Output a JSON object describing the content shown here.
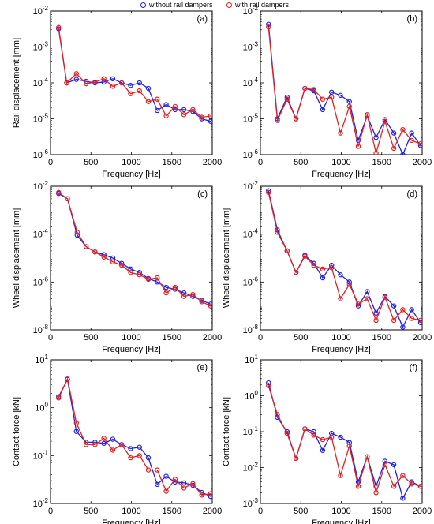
{
  "legend": {
    "items": [
      {
        "label": "without rail dampers",
        "color": "#1f1fe6"
      },
      {
        "label": "with rail dampers",
        "color": "#e61f1f"
      }
    ]
  },
  "chart_data": [
    {
      "type": "line",
      "panel": "(a)",
      "xlabel": "Frequency [Hz]",
      "ylabel": "Rail displacement [mm]",
      "xlim": [
        0,
        2000
      ],
      "ylim": [
        1e-06,
        0.01
      ],
      "yscale": "log",
      "xticks": [
        "0",
        "500",
        "1000",
        "1500",
        "2000"
      ],
      "yticks": [
        "10^-6",
        "10^-5",
        "10^-4",
        "10^-3",
        "10^-2"
      ],
      "x": [
        100,
        200,
        320,
        440,
        550,
        660,
        770,
        880,
        990,
        1100,
        1210,
        1320,
        1430,
        1540,
        1650,
        1760,
        1870,
        1980
      ],
      "series": [
        {
          "name": "without rail dampers",
          "color": "#1f1fe6",
          "values": [
            0.0032,
            0.0001,
            0.000125,
            0.00011,
            0.0001,
            0.000105,
            0.00013,
            0.0001,
            8.5e-05,
            0.0001,
            7e-05,
            1.7e-05,
            2.5e-05,
            1.8e-05,
            1.8e-05,
            1.6e-05,
            1e-05,
            8.5e-06
          ]
        },
        {
          "name": "with rail dampers",
          "color": "#e61f1f",
          "values": [
            0.0035,
            0.0001,
            0.00018,
            9.5e-05,
            0.000105,
            0.00013,
            8e-05,
            0.0001,
            5e-05,
            6e-05,
            3e-05,
            3.5e-05,
            1.2e-05,
            2.2e-05,
            1.3e-05,
            1.8e-05,
            1.1e-05,
            1.2e-05
          ]
        }
      ]
    },
    {
      "type": "line",
      "panel": "(b)",
      "xlabel": "Frequency [Hz]",
      "ylabel": "",
      "xlim": [
        0,
        2000
      ],
      "ylim": [
        1e-06,
        0.01
      ],
      "yscale": "log",
      "xticks": [
        "0",
        "500",
        "1000",
        "1500",
        "2000"
      ],
      "yticks": [
        "10^-6",
        "10^-5",
        "10^-4",
        "10^-3",
        "10^-2"
      ],
      "x": [
        100,
        210,
        330,
        440,
        550,
        660,
        770,
        880,
        990,
        1100,
        1210,
        1320,
        1430,
        1540,
        1650,
        1760,
        1870,
        1980
      ],
      "series": [
        {
          "name": "without rail dampers",
          "color": "#1f1fe6",
          "values": [
            0.0043,
            1e-05,
            4e-05,
            1e-05,
            7e-05,
            6e-05,
            1.8e-05,
            5.5e-05,
            4.5e-05,
            3e-05,
            2.5e-06,
            1.2e-05,
            3e-06,
            9.5e-06,
            4e-06,
            1e-06,
            4e-06,
            1.8e-06
          ]
        },
        {
          "name": "with rail dampers",
          "color": "#e61f1f",
          "values": [
            0.0036,
            9e-06,
            3.5e-05,
            1e-05,
            7e-05,
            6.5e-05,
            3.5e-05,
            4e-05,
            4e-06,
            2.2e-05,
            1.7e-06,
            1.3e-05,
            1.1e-06,
            8.5e-06,
            1.5e-06,
            5e-06,
            2.5e-06,
            2e-06
          ]
        }
      ]
    },
    {
      "type": "line",
      "panel": "(c)",
      "xlabel": "Frequency [Hz]",
      "ylabel": "Wheel displacement [mm]",
      "xlim": [
        0,
        2000
      ],
      "ylim": [
        1e-08,
        0.01
      ],
      "yscale": "log",
      "xticks": [
        "0",
        "500",
        "1000",
        "1500",
        "2000"
      ],
      "yticks": [
        "10^-8",
        "10^-6",
        "10^-4",
        "10^-2"
      ],
      "x": [
        100,
        210,
        330,
        440,
        550,
        660,
        770,
        880,
        990,
        1100,
        1210,
        1320,
        1430,
        1540,
        1650,
        1760,
        1870,
        1980
      ],
      "series": [
        {
          "name": "without rail dampers",
          "color": "#1f1fe6",
          "values": [
            0.005,
            0.003,
            9e-05,
            3e-05,
            1.8e-05,
            1.4e-05,
            1e-05,
            6e-06,
            3.5e-06,
            2.5e-06,
            1.4e-06,
            1e-06,
            6e-07,
            5e-07,
            3.5e-07,
            2.5e-07,
            1.7e-07,
            1.2e-07
          ]
        },
        {
          "name": "with rail dampers",
          "color": "#e61f1f",
          "values": [
            0.0055,
            0.003,
            0.00012,
            3e-05,
            1.8e-05,
            1.1e-05,
            7e-06,
            5e-06,
            2.5e-06,
            2e-06,
            1.3e-06,
            1.5e-06,
            3.5e-07,
            6e-07,
            2.5e-07,
            3e-07,
            1.5e-07,
            1e-07
          ]
        }
      ]
    },
    {
      "type": "line",
      "panel": "(d)",
      "xlabel": "Frequency [Hz]",
      "ylabel": "Wheel displacement [mm]",
      "xlim": [
        0,
        2000
      ],
      "ylim": [
        1e-08,
        0.01
      ],
      "yscale": "log",
      "xticks": [
        "0",
        "500",
        "1000",
        "1500",
        "2000"
      ],
      "yticks": [
        "10^-8",
        "10^-6",
        "10^-4",
        "10^-2"
      ],
      "x": [
        100,
        210,
        330,
        440,
        550,
        660,
        770,
        880,
        990,
        1100,
        1210,
        1320,
        1430,
        1540,
        1650,
        1760,
        1870,
        1980
      ],
      "series": [
        {
          "name": "without rail dampers",
          "color": "#1f1fe6",
          "values": [
            0.0065,
            0.00015,
            2e-05,
            2.5e-06,
            1.3e-05,
            6e-06,
            1.5e-06,
            5e-06,
            2e-06,
            1e-06,
            1e-07,
            4e-07,
            5e-08,
            2.5e-07,
            1e-07,
            1.3e-08,
            7e-08,
            2e-08
          ]
        },
        {
          "name": "with rail dampers",
          "color": "#e61f1f",
          "values": [
            0.0055,
            0.00012,
            2e-05,
            2.5e-06,
            1.2e-05,
            5e-06,
            3.5e-06,
            4e-06,
            2e-07,
            8e-07,
            1.2e-07,
            2e-07,
            2.5e-08,
            2.3e-07,
            2.5e-08,
            7e-08,
            3e-08,
            2.5e-08
          ]
        }
      ]
    },
    {
      "type": "line",
      "panel": "(e)",
      "xlabel": "Frequency [Hz]",
      "ylabel": "Contact force [kN]",
      "xlim": [
        0,
        2000
      ],
      "ylim": [
        0.01,
        10.0
      ],
      "yscale": "log",
      "xticks": [
        "0",
        "500",
        "1000",
        "1500",
        "2000"
      ],
      "yticks": [
        "10^-2",
        "10^-1",
        "10^0",
        "10^1"
      ],
      "x": [
        100,
        210,
        320,
        440,
        550,
        660,
        770,
        880,
        990,
        1100,
        1210,
        1320,
        1430,
        1540,
        1650,
        1760,
        1870,
        1980
      ],
      "series": [
        {
          "name": "without rail dampers",
          "color": "#1f1fe6",
          "values": [
            1.7,
            3.9,
            0.32,
            0.19,
            0.19,
            0.18,
            0.22,
            0.17,
            0.14,
            0.15,
            0.09,
            0.025,
            0.037,
            0.028,
            0.027,
            0.024,
            0.017,
            0.014
          ]
        },
        {
          "name": "with rail dampers",
          "color": "#e61f1f",
          "values": [
            1.6,
            4.0,
            0.48,
            0.17,
            0.17,
            0.23,
            0.13,
            0.17,
            0.09,
            0.1,
            0.05,
            0.05,
            0.018,
            0.032,
            0.021,
            0.026,
            0.015,
            0.016
          ]
        }
      ]
    },
    {
      "type": "line",
      "panel": "(f)",
      "xlabel": "Frequency [Hz]",
      "ylabel": "Contact force [kN]",
      "xlim": [
        0,
        2000
      ],
      "ylim": [
        0.001,
        10.0
      ],
      "yscale": "log",
      "xticks": [
        "0",
        "500",
        "1000",
        "1500",
        "2000"
      ],
      "yticks": [
        "10^-3",
        "10^-2",
        "10^-1",
        "10^0",
        "10^1"
      ],
      "x": [
        100,
        210,
        330,
        440,
        550,
        660,
        770,
        880,
        990,
        1100,
        1210,
        1320,
        1430,
        1540,
        1650,
        1760,
        1870,
        1980
      ],
      "series": [
        {
          "name": "without rail dampers",
          "color": "#1f1fe6",
          "values": [
            2.3,
            0.25,
            0.1,
            0.018,
            0.12,
            0.1,
            0.03,
            0.09,
            0.07,
            0.05,
            0.004,
            0.02,
            0.003,
            0.015,
            0.012,
            0.0014,
            0.004,
            0.003
          ]
        },
        {
          "name": "with rail dampers",
          "color": "#e61f1f",
          "values": [
            1.9,
            0.3,
            0.09,
            0.018,
            0.12,
            0.08,
            0.06,
            0.07,
            0.006,
            0.04,
            0.003,
            0.02,
            0.002,
            0.012,
            0.003,
            0.006,
            0.0035,
            0.003
          ]
        }
      ]
    }
  ]
}
